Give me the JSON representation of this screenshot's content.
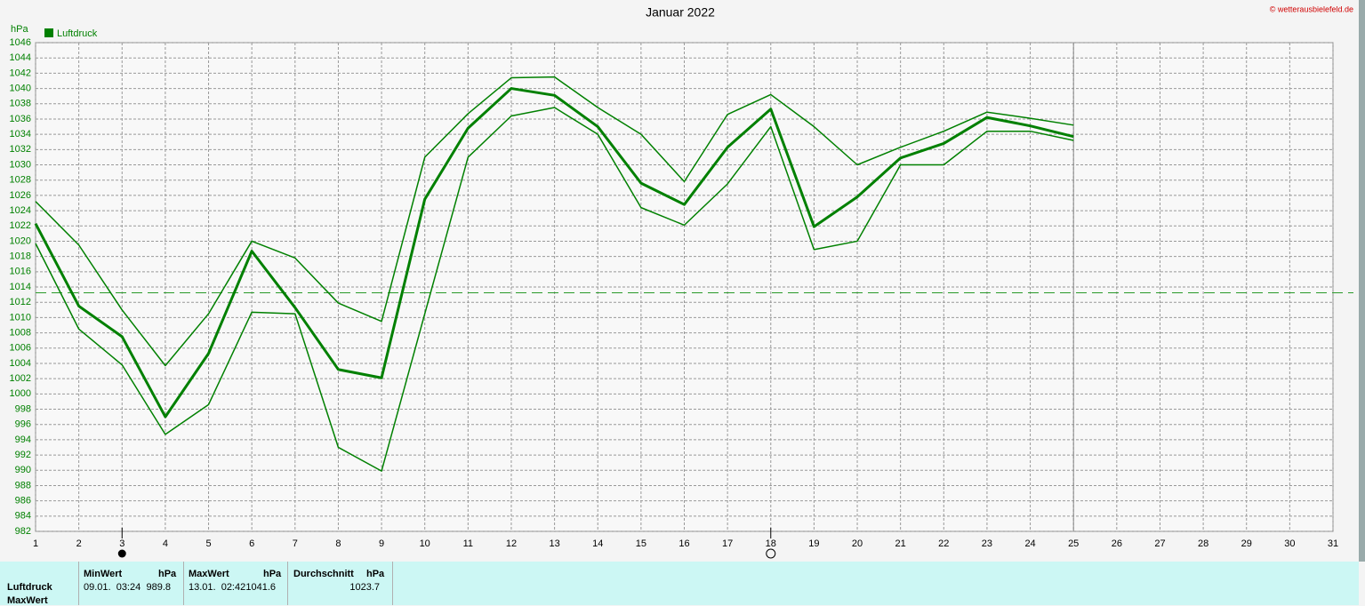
{
  "chart_data": {
    "type": "line",
    "title": "Januar 2022",
    "copyright": "© wetterausbielefeld.de",
    "y_label": "hPa",
    "legend": "Luftdruck",
    "legend_color": "#008000",
    "x": [
      1,
      2,
      3,
      4,
      5,
      6,
      7,
      8,
      9,
      10,
      11,
      12,
      13,
      14,
      15,
      16,
      17,
      18,
      19,
      20,
      21,
      22,
      23,
      24,
      25
    ],
    "series": [
      {
        "color": "#008000",
        "line_width": 1.5,
        "values": [
          1025.2,
          1019.5,
          1011,
          1003.7,
          1010.5,
          1020,
          1017.8,
          1011.9,
          1009.5,
          1031,
          1036.7,
          1041.4,
          1041.5,
          1037.5,
          1034,
          1027.8,
          1036.6,
          1039.2,
          1035,
          1030,
          1032.3,
          1034.4,
          1036.9,
          1036.1,
          1035.2
        ]
      },
      {
        "color": "#008000",
        "line_width": 3,
        "values": [
          1022.3,
          1011.5,
          1007.5,
          997,
          1005.3,
          1018.7,
          1011.3,
          1003.2,
          1002.1,
          1025.5,
          1034.8,
          1040,
          1039.1,
          1035,
          1027.6,
          1024.8,
          1032.3,
          1037.3,
          1021.9,
          1025.8,
          1030.9,
          1032.8,
          1036.2,
          1035.1,
          1033.7
        ]
      },
      {
        "color": "#008000",
        "line_width": 1.5,
        "values": [
          1019.7,
          1008.5,
          1003.8,
          994.7,
          998.6,
          1010.7,
          1010.5,
          993,
          989.9,
          1010.5,
          1031,
          1036.4,
          1037.5,
          1034,
          1024.4,
          1022.1,
          1027.5,
          1035,
          1018.9,
          1020,
          1030,
          1030,
          1034.4,
          1034.4,
          1033.2
        ]
      }
    ],
    "reference_line": 1013.25,
    "current_day": 25,
    "new_moon_day": 3,
    "full_moon_day": 18,
    "xlim": [
      1,
      31
    ],
    "xticks": [
      1,
      2,
      3,
      4,
      5,
      6,
      7,
      8,
      9,
      10,
      11,
      12,
      13,
      14,
      15,
      16,
      17,
      18,
      19,
      20,
      21,
      22,
      23,
      24,
      25,
      26,
      27,
      28,
      29,
      30,
      31
    ],
    "ylim": [
      982,
      1046
    ],
    "yticks": [
      982,
      984,
      986,
      988,
      990,
      992,
      994,
      996,
      998,
      1000,
      1002,
      1004,
      1006,
      1008,
      1010,
      1012,
      1014,
      1016,
      1018,
      1020,
      1022,
      1024,
      1026,
      1028,
      1030,
      1032,
      1034,
      1036,
      1038,
      1040,
      1042,
      1044,
      1046
    ],
    "grid": true
  },
  "table": {
    "headers": [
      "MinWert",
      "hPa",
      "MaxWert",
      "hPa",
      "Durchschnitt",
      "hPa"
    ],
    "rows": [
      [
        "Luftdruck",
        "09.01.  03:24",
        "989.8",
        "13.01.  02:42",
        "1041.6",
        "1023.7"
      ],
      [
        "MaxWert"
      ]
    ]
  }
}
